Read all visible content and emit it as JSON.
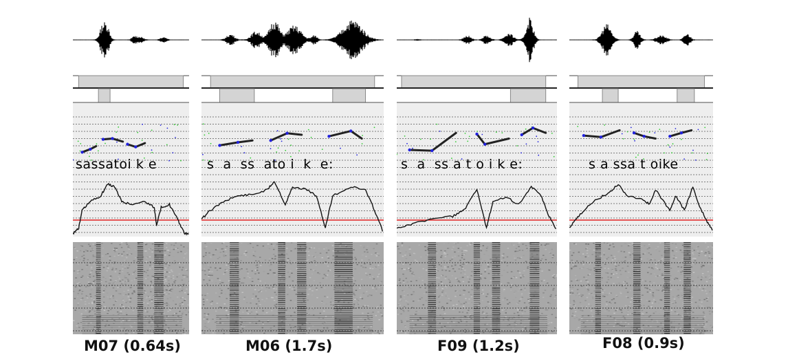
{
  "panels": [
    {
      "id": "M07",
      "caption": "M07 (0.64s)",
      "transcript": "sassatoi k e",
      "bars": [
        [
          0.05,
          0.95
        ]
      ],
      "bars2": [
        [
          0.22,
          0.32
        ]
      ]
    },
    {
      "id": "M06",
      "caption": "M06 (1.7s)",
      "transcript": "s  a  ss  ato i  k  e:",
      "bars": [
        [
          0.05,
          0.95
        ]
      ],
      "bars2": [
        [
          0.1,
          0.29
        ],
        [
          0.72,
          0.9
        ]
      ]
    },
    {
      "id": "F09",
      "caption": "F09 (1.2s)",
      "transcript": "s  a  ss a t o i k e:",
      "bars": [
        [
          0.03,
          0.93
        ]
      ],
      "bars2": [
        [
          0.71,
          0.93
        ]
      ]
    },
    {
      "id": "F08",
      "caption": "F08 (0.9s)",
      "transcript": "s a ssa t oike",
      "bars": [
        [
          0.06,
          0.94
        ]
      ],
      "bars2": [
        [
          0.23,
          0.34
        ],
        [
          0.75,
          0.87
        ]
      ]
    }
  ],
  "colors": {
    "panel_bg": "#eeeeee",
    "waveform": "#000000",
    "pitch": "#222222",
    "pitch_highlight": "#2222dd",
    "pitch_noise": "#33cc33",
    "intensity": "#111111",
    "reference_line": "#e02020",
    "bar_fill": "#d4d4d4"
  }
}
